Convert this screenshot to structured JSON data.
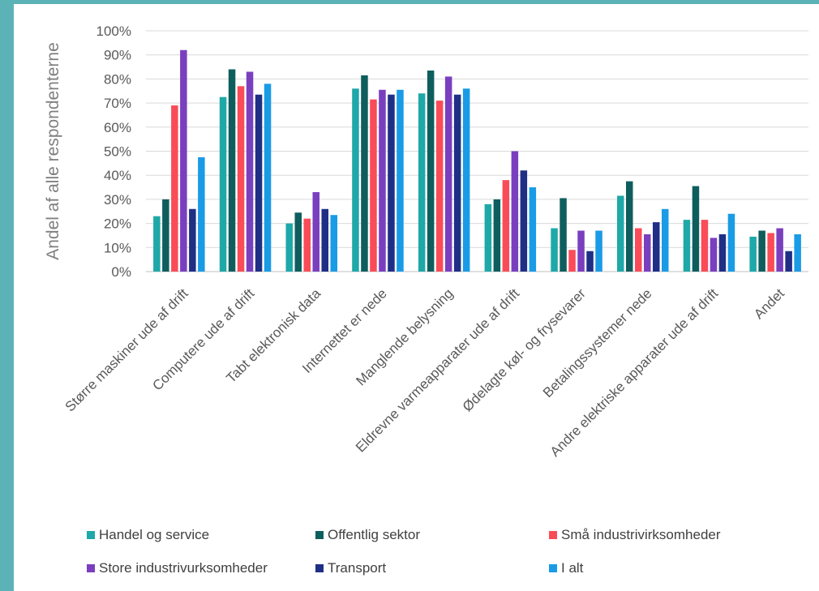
{
  "chart_data": {
    "type": "bar",
    "ylabel": "Andel af alle respondenterne",
    "ylim": [
      0,
      100
    ],
    "yticks": [
      "0%",
      "10%",
      "20%",
      "30%",
      "40%",
      "50%",
      "60%",
      "70%",
      "80%",
      "90%",
      "100%"
    ],
    "grid": true,
    "legend_position": "bottom",
    "categories": [
      "Større maskiner ude af drift",
      "Computere ude af drift",
      "Tabt elektronisk data",
      "Internettet er nede",
      "Manglende belysning",
      "Eldrevne varmeapparater ude af drift",
      "Ødelagte køl- og frysevarer",
      "Betalingssystemer nede",
      "Andre elektriske apparater ude af drift",
      "Andet"
    ],
    "series": [
      {
        "name": "Handel og service",
        "color": "#1fa8a8",
        "values": [
          23,
          72.5,
          20,
          76,
          74,
          28,
          18,
          31.5,
          21.5,
          14.5
        ]
      },
      {
        "name": "Offentlig sektor",
        "color": "#0f5e5e",
        "values": [
          30,
          84,
          24.5,
          81.5,
          83.5,
          30,
          30.5,
          37.5,
          35.5,
          17
        ]
      },
      {
        "name": "Små industrivirksomheder",
        "color": "#f94c58",
        "values": [
          69,
          77,
          22,
          71.5,
          71,
          38,
          9,
          18,
          21.5,
          16
        ]
      },
      {
        "name": "Store industrivurksomheder",
        "color": "#7a3fbf",
        "values": [
          92,
          83,
          33,
          75.5,
          81,
          50,
          17,
          15.5,
          14,
          18
        ]
      },
      {
        "name": "Transport",
        "color": "#1f2f86",
        "values": [
          26,
          73.5,
          26,
          73.5,
          73.5,
          42,
          8.5,
          20.5,
          15.5,
          8.5
        ]
      },
      {
        "name": "I alt",
        "color": "#1a9be6",
        "values": [
          47.5,
          78,
          23.5,
          75.5,
          76,
          35,
          17,
          26,
          24,
          15.5
        ]
      }
    ]
  }
}
